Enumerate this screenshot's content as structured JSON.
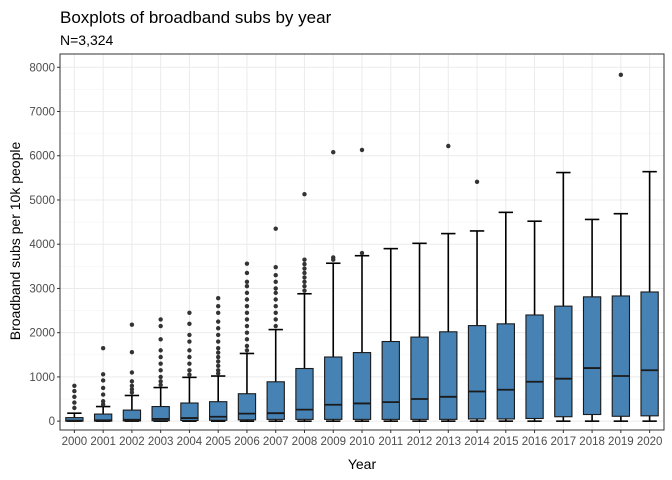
{
  "chart_data": {
    "type": "boxplot",
    "title": "Boxplots of broadband subs by year",
    "subtitle": "N=3,324",
    "xlabel": "Year",
    "ylabel": "Broadband subs per 10k people",
    "ylim": [
      -200,
      8300
    ],
    "yticks": [
      0,
      1000,
      2000,
      3000,
      4000,
      5000,
      6000,
      7000,
      8000
    ],
    "grid": true,
    "colors": {
      "box_fill": "#4682B4",
      "line": "#000000",
      "grid_major": "#EBEBEB",
      "grid_minor": "#F5F5F5",
      "panel_border": "#333333"
    },
    "categories": [
      "2000",
      "2001",
      "2002",
      "2003",
      "2004",
      "2005",
      "2006",
      "2007",
      "2008",
      "2009",
      "2010",
      "2011",
      "2012",
      "2013",
      "2014",
      "2015",
      "2016",
      "2017",
      "2018",
      "2019",
      "2020"
    ],
    "boxes": [
      {
        "min": 0,
        "q1": 0,
        "median": 10,
        "q3": 80,
        "max": 180,
        "outliers": [
          300,
          420,
          550,
          680,
          800
        ]
      },
      {
        "min": 0,
        "q1": 0,
        "median": 20,
        "q3": 160,
        "max": 330,
        "outliers": [
          380,
          450,
          600,
          750,
          920,
          1060,
          1650
        ]
      },
      {
        "min": 0,
        "q1": 5,
        "median": 30,
        "q3": 250,
        "max": 580,
        "outliers": [
          650,
          720,
          800,
          900,
          1100,
          1560,
          2180
        ]
      },
      {
        "min": 0,
        "q1": 10,
        "median": 50,
        "q3": 330,
        "max": 760,
        "outliers": [
          820,
          900,
          1000,
          1150,
          1300,
          1450,
          1600,
          1850,
          2150,
          2300
        ]
      },
      {
        "min": 0,
        "q1": 15,
        "median": 70,
        "q3": 410,
        "max": 990,
        "outliers": [
          1050,
          1150,
          1300,
          1450,
          1600,
          1800,
          1950,
          2200,
          2450
        ]
      },
      {
        "min": 0,
        "q1": 20,
        "median": 100,
        "q3": 440,
        "max": 1020,
        "outliers": [
          1080,
          1150,
          1250,
          1350,
          1450,
          1550,
          1650,
          1800,
          1950,
          2100,
          2250,
          2450,
          2600,
          2780
        ]
      },
      {
        "min": 0,
        "q1": 30,
        "median": 170,
        "q3": 620,
        "max": 1530,
        "outliers": [
          1600,
          1700,
          1850,
          2000,
          2150,
          2300,
          2450,
          2600,
          2750,
          2900,
          3050,
          3150,
          3350,
          3560
        ]
      },
      {
        "min": 0,
        "q1": 40,
        "median": 180,
        "q3": 890,
        "max": 2070,
        "outliers": [
          2150,
          2300,
          2450,
          2600,
          2750,
          2900,
          3000,
          3150,
          3300,
          3480,
          4350
        ]
      },
      {
        "min": 0,
        "q1": 40,
        "median": 260,
        "q3": 1190,
        "max": 2880,
        "outliers": [
          2950,
          3050,
          3150,
          3250,
          3350,
          3450,
          3550,
          3650,
          5130
        ]
      },
      {
        "min": 0,
        "q1": 40,
        "median": 370,
        "q3": 1450,
        "max": 3570,
        "outliers": [
          3650,
          3700,
          6080
        ]
      },
      {
        "min": 0,
        "q1": 40,
        "median": 400,
        "q3": 1550,
        "max": 3740,
        "outliers": [
          3800,
          6130
        ]
      },
      {
        "min": 0,
        "q1": 40,
        "median": 430,
        "q3": 1800,
        "max": 3900,
        "outliers": []
      },
      {
        "min": 0,
        "q1": 40,
        "median": 500,
        "q3": 1900,
        "max": 4020,
        "outliers": []
      },
      {
        "min": 0,
        "q1": 40,
        "median": 550,
        "q3": 2020,
        "max": 4240,
        "outliers": [
          6220
        ]
      },
      {
        "min": 0,
        "q1": 50,
        "median": 670,
        "q3": 2160,
        "max": 4300,
        "outliers": [
          5410
        ]
      },
      {
        "min": 0,
        "q1": 50,
        "median": 710,
        "q3": 2200,
        "max": 4720,
        "outliers": []
      },
      {
        "min": 0,
        "q1": 60,
        "median": 890,
        "q3": 2400,
        "max": 4520,
        "outliers": []
      },
      {
        "min": 0,
        "q1": 100,
        "median": 960,
        "q3": 2600,
        "max": 5620,
        "outliers": []
      },
      {
        "min": 0,
        "q1": 150,
        "median": 1200,
        "q3": 2810,
        "max": 4560,
        "outliers": []
      },
      {
        "min": 0,
        "q1": 110,
        "median": 1020,
        "q3": 2830,
        "max": 4690,
        "outliers": [
          7830
        ]
      },
      {
        "min": 0,
        "q1": 120,
        "median": 1150,
        "q3": 2920,
        "max": 5640,
        "outliers": []
      }
    ]
  }
}
